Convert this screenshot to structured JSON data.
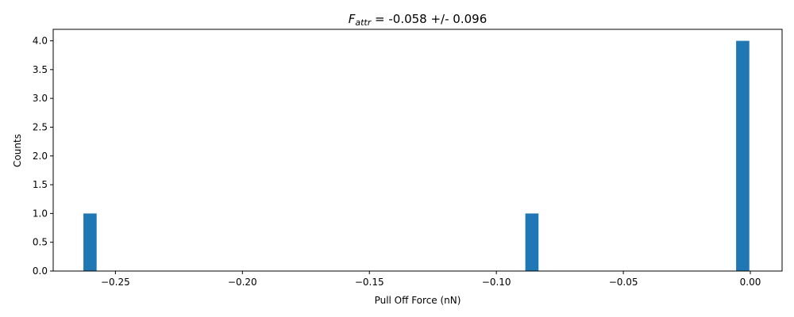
{
  "chart_data": {
    "type": "bar",
    "title": {
      "symbol": "F",
      "subscript": "attr",
      "rest": " = -0.058 +/- 0.096"
    },
    "xlabel": "Pull Off Force (nN)",
    "ylabel": "Counts",
    "xlim": [
      -0.2745,
      0.0125
    ],
    "ylim": [
      0,
      4.2
    ],
    "bin_width": 0.0052,
    "bars": [
      {
        "x": -0.26,
        "count": 1
      },
      {
        "x": -0.086,
        "count": 1
      },
      {
        "x": -0.003,
        "count": 4
      }
    ],
    "xticks": [
      {
        "value": -0.25,
        "label": "−0.25"
      },
      {
        "value": -0.2,
        "label": "−0.20"
      },
      {
        "value": -0.15,
        "label": "−0.15"
      },
      {
        "value": -0.1,
        "label": "−0.10"
      },
      {
        "value": -0.05,
        "label": "−0.05"
      },
      {
        "value": 0.0,
        "label": "0.00"
      }
    ],
    "yticks": [
      {
        "value": 0.0,
        "label": "0.0"
      },
      {
        "value": 0.5,
        "label": "0.5"
      },
      {
        "value": 1.0,
        "label": "1.0"
      },
      {
        "value": 1.5,
        "label": "1.5"
      },
      {
        "value": 2.0,
        "label": "2.0"
      },
      {
        "value": 2.5,
        "label": "2.5"
      },
      {
        "value": 3.0,
        "label": "3.0"
      },
      {
        "value": 3.5,
        "label": "3.5"
      },
      {
        "value": 4.0,
        "label": "4.0"
      }
    ],
    "bar_color": "#1f77b4",
    "grid": false,
    "legend": "none"
  }
}
